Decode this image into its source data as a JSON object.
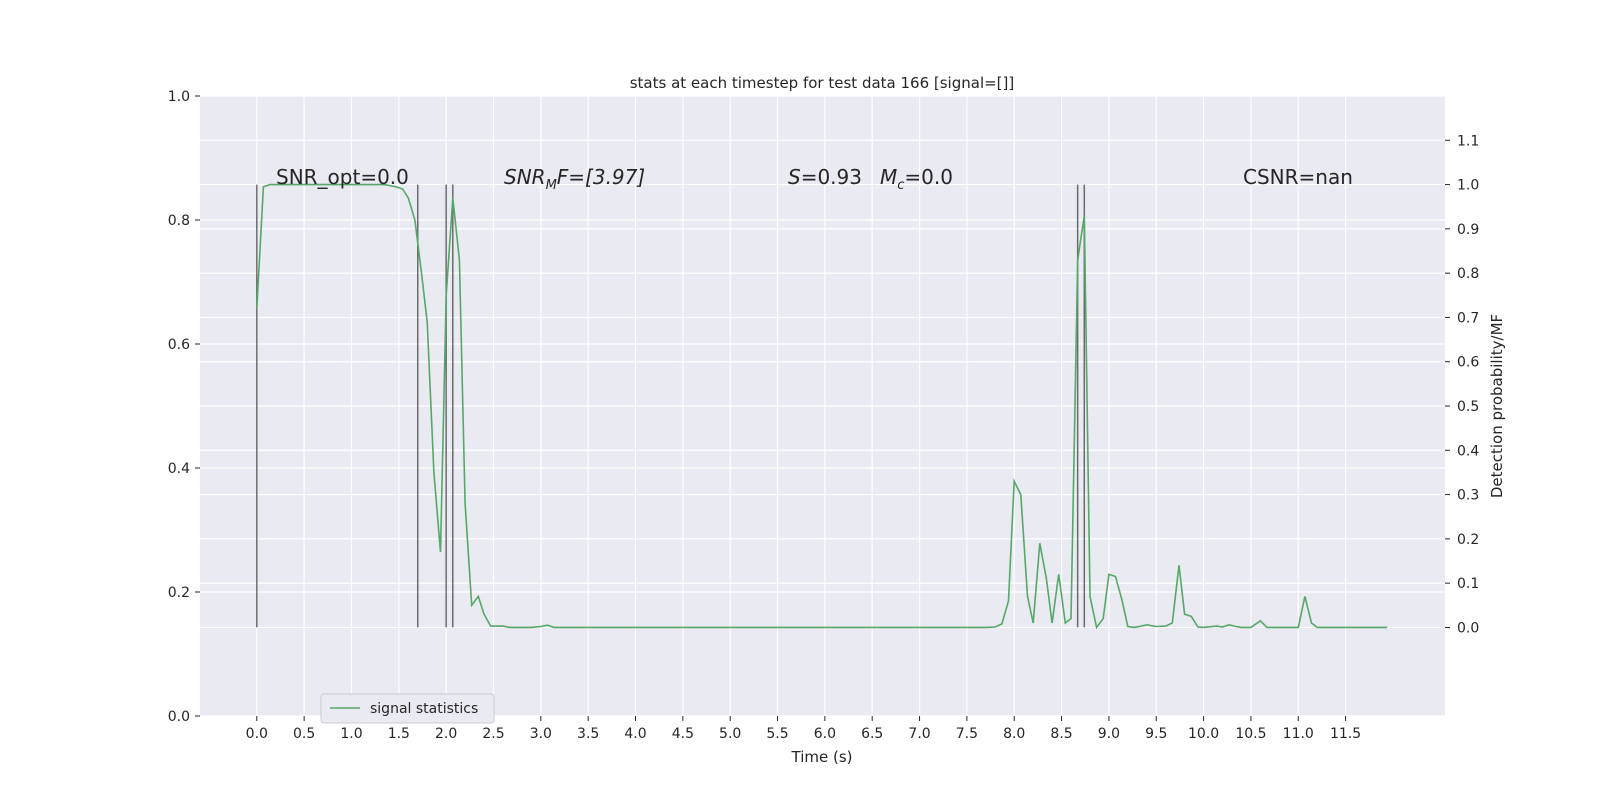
{
  "chart_data": {
    "type": "line",
    "title": "stats at each timestep for test data 166 [signal=[]]",
    "xlabel": "Time (s)",
    "ylabel_left": "",
    "ylabel_right": "Detection probability/MF",
    "xlim": [
      -0.6,
      12.55
    ],
    "ylim_left": [
      0.0,
      1.0
    ],
    "ylim_right": [
      -0.2,
      1.2
    ],
    "x_ticks": [
      "0.0",
      "0.5",
      "1.0",
      "1.5",
      "2.0",
      "2.5",
      "3.0",
      "3.5",
      "4.0",
      "4.5",
      "5.0",
      "5.5",
      "6.0",
      "6.5",
      "7.0",
      "7.5",
      "8.0",
      "8.5",
      "9.0",
      "9.5",
      "10.0",
      "10.5",
      "11.0",
      "11.5"
    ],
    "y_ticks_left": [
      "0.0",
      "0.2",
      "0.4",
      "0.6",
      "0.8",
      "1.0"
    ],
    "y_ticks_right": [
      "0.0",
      "0.1",
      "0.2",
      "0.3",
      "0.4",
      "0.5",
      "0.6",
      "0.7",
      "0.8",
      "0.9",
      "1.0",
      "1.1"
    ],
    "grid": true,
    "legend_position": "lower-left",
    "colors": {
      "background": "#eaeaf2",
      "grid": "#ffffff",
      "series": "#55a868",
      "vline": "#555555"
    },
    "annotations": {
      "snr_opt": "SNR_opt=0.0",
      "snr_mf_prefix": "SNR",
      "snr_mf_sub": "M",
      "snr_mf_suffix": "F=[3.97]",
      "s_var": "S",
      "s_val": "=0.93",
      "mc_var": "M",
      "mc_sub": "c",
      "mc_val": "=0.0",
      "csnr": "CSNR=nan"
    },
    "vlines_x": [
      0.0,
      1.7,
      2.0,
      2.07,
      8.67,
      8.74
    ],
    "series": [
      {
        "name": "signal statistics",
        "axis": "right",
        "x": [
          0.0,
          0.07,
          0.14,
          0.2,
          0.27,
          0.34,
          0.4,
          0.47,
          0.54,
          0.6,
          0.67,
          0.74,
          0.8,
          0.87,
          0.94,
          1.0,
          1.07,
          1.14,
          1.2,
          1.27,
          1.34,
          1.4,
          1.47,
          1.54,
          1.6,
          1.67,
          1.74,
          1.8,
          1.87,
          1.94,
          2.0,
          2.07,
          2.14,
          2.2,
          2.27,
          2.34,
          2.4,
          2.47,
          2.54,
          2.6,
          2.67,
          2.8,
          2.9,
          3.0,
          3.07,
          3.14,
          3.3,
          3.5,
          4.0,
          5.0,
          6.0,
          7.0,
          7.7,
          7.8,
          7.87,
          7.94,
          8.0,
          8.07,
          8.14,
          8.2,
          8.27,
          8.34,
          8.4,
          8.47,
          8.54,
          8.6,
          8.67,
          8.74,
          8.8,
          8.87,
          8.94,
          9.0,
          9.07,
          9.14,
          9.2,
          9.27,
          9.34,
          9.4,
          9.5,
          9.6,
          9.67,
          9.74,
          9.8,
          9.87,
          9.94,
          10.0,
          10.14,
          10.2,
          10.27,
          10.34,
          10.4,
          10.5,
          10.6,
          10.67,
          10.74,
          10.9,
          11.0,
          11.07,
          11.14,
          11.2,
          11.3,
          11.5,
          11.6,
          11.8,
          11.94
        ],
        "values": [
          0.72,
          0.995,
          1.0,
          1.0,
          1.0,
          1.0,
          1.0,
          1.0,
          1.0,
          1.0,
          1.0,
          1.0,
          1.0,
          1.0,
          1.0,
          1.0,
          1.0,
          1.0,
          1.0,
          1.0,
          1.0,
          0.998,
          0.995,
          0.99,
          0.97,
          0.92,
          0.8,
          0.69,
          0.35,
          0.17,
          0.75,
          0.97,
          0.83,
          0.28,
          0.05,
          0.07,
          0.03,
          0.003,
          0.003,
          0.003,
          0.0,
          0.0,
          0.0,
          0.002,
          0.005,
          0.0,
          0.0,
          0.0,
          0.0,
          0.0,
          0.0,
          0.0,
          0.0,
          0.001,
          0.008,
          0.06,
          0.33,
          0.3,
          0.07,
          0.01,
          0.19,
          0.11,
          0.01,
          0.12,
          0.01,
          0.02,
          0.83,
          0.93,
          0.07,
          0.0,
          0.02,
          0.12,
          0.115,
          0.06,
          0.002,
          0.0,
          0.003,
          0.006,
          0.002,
          0.003,
          0.01,
          0.14,
          0.03,
          0.025,
          0.001,
          0.0,
          0.003,
          0.001,
          0.006,
          0.002,
          0.0,
          0.0,
          0.015,
          0.0,
          0.0,
          0.0,
          0.0,
          0.07,
          0.01,
          0.0,
          0.0,
          0.0,
          0.0,
          0.0,
          0.0
        ]
      }
    ]
  }
}
